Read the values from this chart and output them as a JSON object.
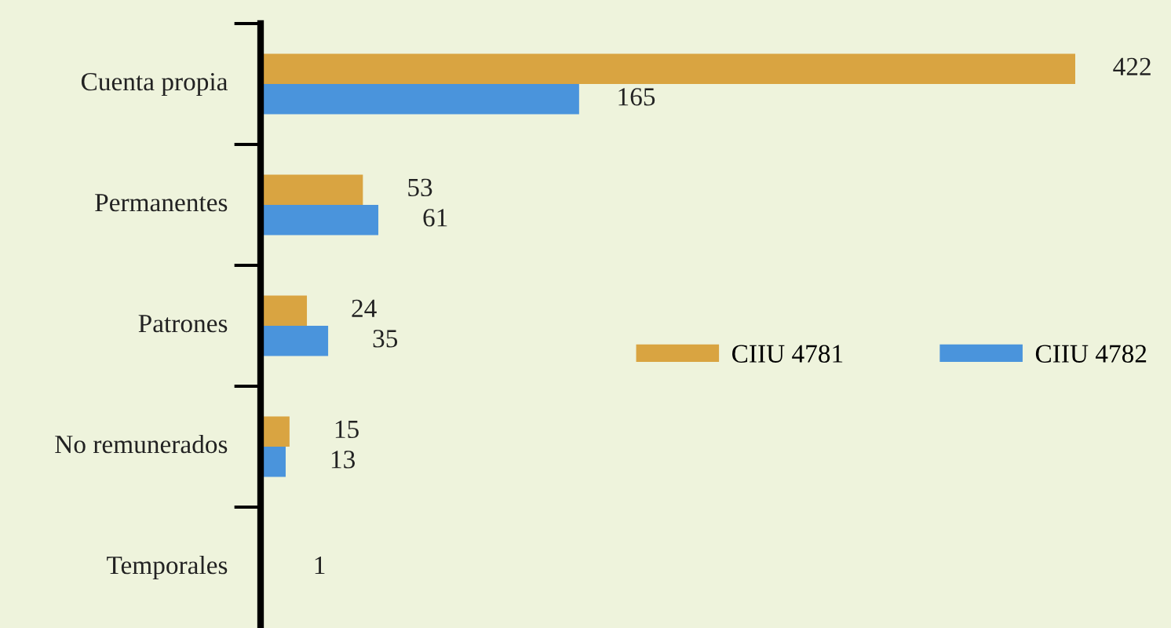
{
  "chart_data": {
    "type": "bar",
    "orientation": "horizontal",
    "categories": [
      "Cuenta propia",
      "Permanentes",
      "Patrones",
      "No remunerados",
      "Temporales"
    ],
    "series": [
      {
        "name": "CIIU 4781",
        "color": "#d9a441",
        "values": [
          422,
          53,
          24,
          15,
          1
        ]
      },
      {
        "name": "CIIU 4782",
        "color": "#4a94dc",
        "values": [
          165,
          61,
          35,
          13,
          null
        ]
      }
    ],
    "data_labels": true,
    "legend": "right",
    "grid": false
  }
}
